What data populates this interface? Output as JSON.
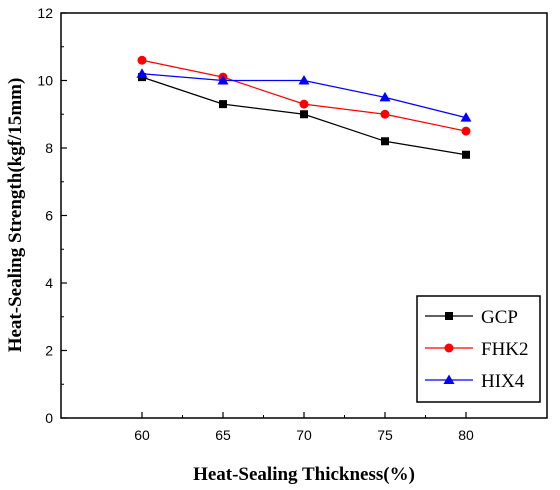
{
  "chart_data": {
    "type": "line",
    "title": "",
    "xlabel": "Heat-Sealing Thickness(%)",
    "ylabel": "Heat-Sealing Strength(kgf/15mm)",
    "x": [
      60,
      65,
      70,
      75,
      80
    ],
    "xlim": [
      55,
      85
    ],
    "ylim": [
      0,
      12
    ],
    "xticks": [
      "60",
      "65",
      "70",
      "75",
      "80"
    ],
    "yticks": [
      "0",
      "2",
      "4",
      "6",
      "8",
      "10",
      "12"
    ],
    "grid": false,
    "legend_position": "bottom-right",
    "series": [
      {
        "name": "GCP",
        "values": [
          10.1,
          9.3,
          9.0,
          8.2,
          7.8
        ],
        "color": "#000000",
        "marker": "square"
      },
      {
        "name": "FHK2",
        "values": [
          10.6,
          10.1,
          9.3,
          9.0,
          8.5
        ],
        "color": "#ff0000",
        "marker": "circle"
      },
      {
        "name": "HIX4",
        "values": [
          10.2,
          10.0,
          10.0,
          9.5,
          8.9
        ],
        "color": "#0000ff",
        "marker": "triangle"
      }
    ]
  }
}
